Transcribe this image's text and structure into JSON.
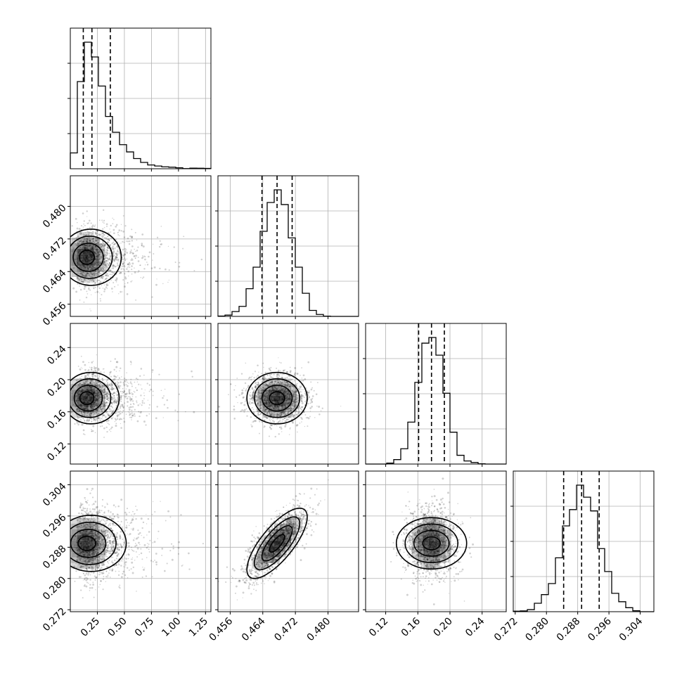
{
  "chart_data": {
    "type": "corner",
    "grid": true,
    "parameters": [
      {
        "range": [
          0.0,
          1.3
        ],
        "ticks": [
          0.25,
          0.5,
          0.75,
          1.0,
          1.25
        ],
        "tick_labels": [
          "0.25",
          "0.50",
          "0.75",
          "1.00",
          "1.25"
        ],
        "center": 0.25,
        "sigma": 0.12,
        "skew": "right",
        "quantiles": [
          0.12,
          0.2,
          0.37
        ]
      },
      {
        "range": [
          0.453,
          0.4875
        ],
        "ticks": [
          0.456,
          0.464,
          0.472,
          0.48
        ],
        "tick_labels": [
          "0.456",
          "0.464",
          "0.472",
          "0.480"
        ],
        "center": 0.4675,
        "sigma": 0.0037,
        "quantiles": [
          0.4638,
          0.4675,
          0.4712
        ]
      },
      {
        "range": [
          0.095,
          0.27
        ],
        "ticks": [
          0.12,
          0.16,
          0.2,
          0.24
        ],
        "tick_labels": [
          "0.12",
          "0.16",
          "0.20",
          "0.24"
        ],
        "center": 0.177,
        "sigma": 0.016,
        "quantiles": [
          0.161,
          0.177,
          0.193
        ]
      },
      {
        "range": [
          0.2715,
          0.3075
        ],
        "ticks": [
          0.272,
          0.28,
          0.288,
          0.296,
          0.304
        ],
        "tick_labels": [
          "0.272",
          "0.280",
          "0.288",
          "0.296",
          "0.304"
        ],
        "center": 0.289,
        "sigma": 0.0045,
        "quantiles": [
          0.2844,
          0.289,
          0.2935
        ]
      }
    ],
    "correlations": [
      [
        0,
        1,
        0.0
      ],
      [
        0,
        2,
        0.0
      ],
      [
        0,
        3,
        0.0
      ],
      [
        1,
        2,
        0.0
      ],
      [
        1,
        3,
        0.75
      ],
      [
        2,
        3,
        0.0
      ]
    ],
    "histogram_bins": 20,
    "contour_levels_sigma": [
      0.5,
      1.0,
      1.5,
      2.0
    ]
  }
}
